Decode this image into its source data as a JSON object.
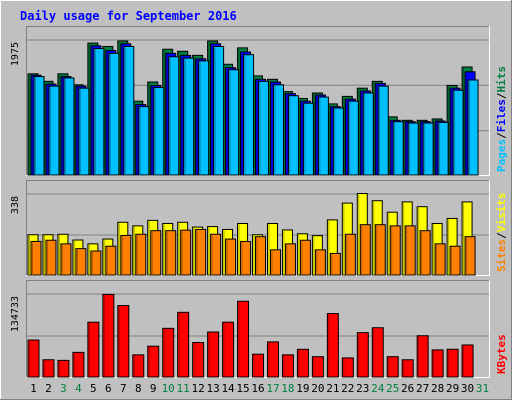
{
  "chart_data": {
    "type": "bar",
    "title": "Daily usage for September 2016",
    "categories": [
      "1",
      "2",
      "3",
      "4",
      "5",
      "6",
      "7",
      "8",
      "9",
      "10",
      "11",
      "12",
      "13",
      "14",
      "15",
      "16",
      "17",
      "18",
      "19",
      "20",
      "21",
      "22",
      "23",
      "24",
      "25",
      "26",
      "27",
      "28",
      "29",
      "30",
      "31"
    ],
    "weekend_days": [
      "3",
      "4",
      "10",
      "11",
      "17",
      "18",
      "24",
      "25",
      "31"
    ],
    "panels": [
      {
        "name": "hits-files-pages",
        "ymax_label": "1975",
        "ylim": [
          0,
          1975
        ],
        "side_labels": [
          {
            "text": "Pages",
            "color": "#00c0ff"
          },
          {
            "text": "/",
            "color": "#000000"
          },
          {
            "text": "Files",
            "color": "#0000ff"
          },
          {
            "text": "/",
            "color": "#000000"
          },
          {
            "text": "Hits",
            "color": "#008040"
          }
        ],
        "series": [
          {
            "name": "Hits",
            "color": "#008040",
            "values": [
              1480,
              1370,
              1480,
              1320,
              1930,
              1880,
              1960,
              1080,
              1360,
              1840,
              1810,
              1750,
              1960,
              1620,
              1860,
              1450,
              1400,
              1220,
              1120,
              1200,
              1040,
              1150,
              1270,
              1370,
              850,
              800,
              800,
              820,
              1310,
              1580
            ]
          },
          {
            "name": "Files",
            "color": "#0000ff",
            "values": [
              1460,
              1330,
              1440,
              1300,
              1890,
              1820,
              1920,
              1030,
              1310,
              1780,
              1750,
              1700,
              1920,
              1570,
              1800,
              1400,
              1360,
              1190,
              1080,
              1170,
              1000,
              1110,
              1230,
              1340,
              800,
              780,
              780,
              790,
              1270,
              1510
            ]
          },
          {
            "name": "Pages",
            "color": "#00c0ff",
            "values": [
              1440,
              1300,
              1420,
              1270,
              1850,
              1780,
              1880,
              1000,
              1280,
              1730,
              1710,
              1670,
              1880,
              1540,
              1760,
              1370,
              1320,
              1160,
              1050,
              1140,
              980,
              1080,
              1200,
              1300,
              780,
              760,
              760,
              770,
              1240,
              1390
            ]
          }
        ]
      },
      {
        "name": "visits-sites",
        "ymax_label": "338",
        "ylim": [
          0,
          338
        ],
        "side_labels": [
          {
            "text": "Sites",
            "color": "#ff8000"
          },
          {
            "text": "/",
            "color": "#000000"
          },
          {
            "text": "Visits",
            "color": "#ffff00"
          }
        ],
        "series": [
          {
            "name": "Visits",
            "color": "#ffff00",
            "values": [
              168,
              168,
              170,
              146,
              130,
              150,
              220,
              205,
              228,
              215,
              220,
              200,
              202,
              190,
              215,
              168,
              215,
              188,
              172,
              164,
              230,
              300,
              340,
              310,
              262,
              305,
              285,
              215,
              236,
              305
            ]
          },
          {
            "name": "Sites",
            "color": "#ff8000",
            "values": [
              140,
              145,
              130,
              110,
              100,
              120,
              165,
              170,
              185,
              185,
              187,
              190,
              170,
              150,
              140,
              160,
              105,
              130,
              145,
              105,
              90,
              170,
              210,
              210,
              205,
              205,
              185,
              130,
              120,
              160
            ]
          }
        ]
      },
      {
        "name": "kbytes",
        "ymax_label": "134733",
        "ylim": [
          0,
          134733
        ],
        "side_labels": [
          {
            "text": "KBytes",
            "color": "#ff0000"
          }
        ],
        "series": [
          {
            "name": "KBytes",
            "color": "#ff0000",
            "values": [
              60000,
              28000,
              27000,
              40000,
              89000,
              134000,
              116000,
              36000,
              50000,
              79000,
              105000,
              56000,
              73000,
              89000,
              123000,
              37000,
              57000,
              36000,
              45000,
              33000,
              103000,
              31000,
              72000,
              80000,
              33000,
              28000,
              67000,
              44000,
              45000,
              52000
            ]
          }
        ]
      }
    ]
  }
}
